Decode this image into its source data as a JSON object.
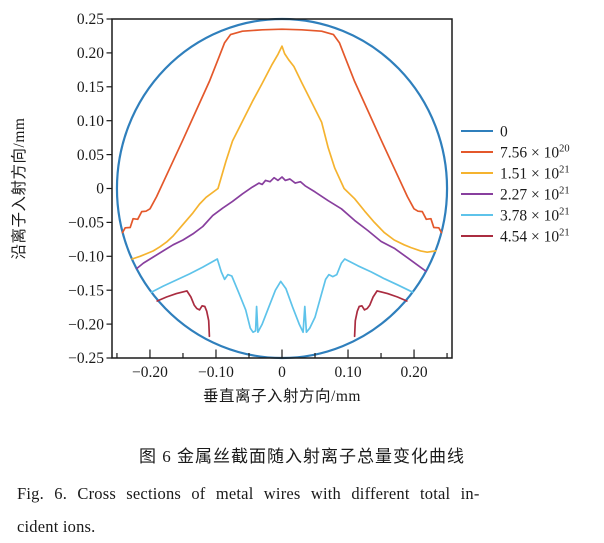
{
  "chart_data": {
    "type": "line",
    "title": "",
    "xlabel": "垂直离子入射方向/mm",
    "ylabel": "沿离子入射方向/mm",
    "xlim": [
      -0.2575,
      0.2575
    ],
    "ylim": [
      -0.25,
      0.25
    ],
    "x_major_ticks": [
      -0.2,
      -0.1,
      0,
      0.1,
      0.2
    ],
    "x_minor_ticks": [
      -0.25,
      -0.15,
      -0.05,
      0.05,
      0.15,
      0.25
    ],
    "y_major_ticks": [
      0.25,
      0.2,
      0.15,
      0.1,
      0.05,
      0,
      -0.05,
      -0.1,
      -0.15,
      -0.2,
      -0.25
    ],
    "grid": false,
    "legend_position": "center-right",
    "frame_color": "#1a1a1a",
    "series": [
      {
        "name": "0",
        "color": "#2f7fbc",
        "legend_base": "0",
        "legend_exp": "",
        "circle": {
          "cx": 0,
          "cy": 0,
          "r": 0.25
        }
      },
      {
        "name": "7.56e20",
        "color": "#e4582b",
        "legend_base": "7.56 × 10",
        "legend_exp": "20",
        "segments": [
          [
            [
              -0.2416,
              -0.065
            ],
            [
              -0.2375,
              -0.058
            ],
            [
              -0.23,
              -0.0575
            ],
            [
              -0.2255,
              -0.0445
            ],
            [
              -0.2185,
              -0.0455
            ],
            [
              -0.2125,
              -0.034
            ],
            [
              -0.206,
              -0.0335
            ],
            [
              -0.2,
              -0.03
            ],
            [
              -0.19,
              -0.012
            ],
            [
              -0.17,
              0.03
            ],
            [
              -0.15,
              0.072
            ],
            [
              -0.13,
              0.115
            ],
            [
              -0.11,
              0.158
            ],
            [
              -0.095,
              0.195
            ],
            [
              -0.087,
              0.215
            ],
            [
              -0.078,
              0.227
            ],
            [
              -0.06,
              0.232
            ],
            [
              -0.03,
              0.234
            ],
            [
              0,
              0.235
            ],
            [
              0.03,
              0.234
            ],
            [
              0.06,
              0.232
            ],
            [
              0.078,
              0.227
            ],
            [
              0.087,
              0.215
            ],
            [
              0.095,
              0.195
            ],
            [
              0.11,
              0.158
            ],
            [
              0.13,
              0.115
            ],
            [
              0.15,
              0.072
            ],
            [
              0.17,
              0.03
            ],
            [
              0.19,
              -0.012
            ],
            [
              0.2,
              -0.03
            ],
            [
              0.206,
              -0.0335
            ],
            [
              0.2125,
              -0.034
            ],
            [
              0.2185,
              -0.0455
            ],
            [
              0.2255,
              -0.0445
            ],
            [
              0.23,
              -0.0575
            ],
            [
              0.2375,
              -0.058
            ],
            [
              0.2416,
              -0.065
            ]
          ]
        ]
      },
      {
        "name": "1.51e21",
        "color": "#f5b32f",
        "legend_base": "1.51 × 10",
        "legend_exp": "21",
        "segments": [
          [
            [
              -0.227,
              -0.104
            ],
            [
              -0.215,
              -0.1
            ],
            [
              -0.205,
              -0.096
            ],
            [
              -0.195,
              -0.092
            ],
            [
              -0.185,
              -0.086
            ],
            [
              -0.175,
              -0.079
            ],
            [
              -0.165,
              -0.07
            ],
            [
              -0.15,
              -0.053
            ],
            [
              -0.135,
              -0.036
            ],
            [
              -0.125,
              -0.023
            ],
            [
              -0.115,
              -0.013
            ],
            [
              -0.097,
              0
            ],
            [
              -0.085,
              0.04
            ],
            [
              -0.075,
              0.07
            ],
            [
              -0.06,
              0.099
            ],
            [
              -0.045,
              0.128
            ],
            [
              -0.03,
              0.155
            ],
            [
              -0.015,
              0.183
            ],
            [
              -0.006,
              0.198
            ],
            [
              0,
              0.21
            ],
            [
              0.004,
              0.199
            ],
            [
              0.01,
              0.19
            ],
            [
              0.018,
              0.18
            ],
            [
              0.03,
              0.156
            ],
            [
              0.045,
              0.127
            ],
            [
              0.06,
              0.098
            ],
            [
              0.07,
              0.06
            ],
            [
              0.08,
              0.03
            ],
            [
              0.094,
              0
            ],
            [
              0.11,
              -0.015
            ],
            [
              0.125,
              -0.033
            ],
            [
              0.14,
              -0.05
            ],
            [
              0.155,
              -0.065
            ],
            [
              0.17,
              -0.076
            ],
            [
              0.185,
              -0.083
            ],
            [
              0.195,
              -0.087
            ],
            [
              0.21,
              -0.092
            ],
            [
              0.22,
              -0.094
            ],
            [
              0.233,
              -0.092
            ]
          ]
        ]
      },
      {
        "name": "2.27e21",
        "color": "#883f9e",
        "legend_base": "2.27 × 10",
        "legend_exp": "21",
        "segments": [
          [
            [
              -0.22,
              -0.118
            ],
            [
              -0.21,
              -0.11
            ],
            [
              -0.195,
              -0.101
            ],
            [
              -0.18,
              -0.092
            ],
            [
              -0.165,
              -0.083
            ],
            [
              -0.15,
              -0.076
            ],
            [
              -0.135,
              -0.067
            ],
            [
              -0.12,
              -0.056
            ],
            [
              -0.105,
              -0.04
            ],
            [
              -0.09,
              -0.029
            ],
            [
              -0.075,
              -0.019
            ],
            [
              -0.06,
              -0.008
            ],
            [
              -0.045,
              0.002
            ],
            [
              -0.035,
              0.008
            ],
            [
              -0.03,
              0.006
            ],
            [
              -0.025,
              0.012
            ],
            [
              -0.018,
              0.01
            ],
            [
              -0.012,
              0.016
            ],
            [
              -0.006,
              0.012
            ],
            [
              0,
              0.017
            ],
            [
              0.005,
              0.012
            ],
            [
              0.012,
              0.014
            ],
            [
              0.02,
              0.008
            ],
            [
              0.028,
              0.01
            ],
            [
              0.035,
              0.004
            ],
            [
              0.05,
              -0.005
            ],
            [
              0.07,
              -0.018
            ],
            [
              0.09,
              -0.03
            ],
            [
              0.11,
              -0.047
            ],
            [
              0.13,
              -0.062
            ],
            [
              0.15,
              -0.078
            ],
            [
              0.17,
              -0.088
            ],
            [
              0.19,
              -0.102
            ],
            [
              0.218,
              -0.122
            ]
          ]
        ]
      },
      {
        "name": "3.78e21",
        "color": "#5ec3ea",
        "legend_base": "3.78 × 10",
        "legend_exp": "21",
        "segments": [
          [
            [
              -0.198,
              -0.153
            ],
            [
              -0.18,
              -0.144
            ],
            [
              -0.16,
              -0.135
            ],
            [
              -0.14,
              -0.126
            ],
            [
              -0.12,
              -0.116
            ],
            [
              -0.098,
              -0.104
            ],
            [
              -0.092,
              -0.123
            ],
            [
              -0.087,
              -0.134
            ],
            [
              -0.082,
              -0.127
            ],
            [
              -0.076,
              -0.129
            ],
            [
              -0.065,
              -0.155
            ],
            [
              -0.055,
              -0.179
            ],
            [
              -0.048,
              -0.206
            ],
            [
              -0.044,
              -0.212
            ],
            [
              -0.04,
              -0.21
            ],
            [
              -0.0385,
              -0.174
            ],
            [
              -0.0365,
              -0.212
            ],
            [
              -0.03,
              -0.2
            ],
            [
              -0.02,
              -0.175
            ],
            [
              -0.01,
              -0.15
            ],
            [
              -0.002,
              -0.137
            ],
            [
              0.006,
              -0.148
            ],
            [
              0.016,
              -0.175
            ],
            [
              0.026,
              -0.2
            ],
            [
              0.032,
              -0.212
            ],
            [
              0.0345,
              -0.174
            ],
            [
              0.037,
              -0.212
            ],
            [
              0.042,
              -0.206
            ],
            [
              0.05,
              -0.19
            ],
            [
              0.06,
              -0.155
            ],
            [
              0.066,
              -0.134
            ],
            [
              0.071,
              -0.127
            ],
            [
              0.077,
              -0.13
            ],
            [
              0.083,
              -0.127
            ],
            [
              0.09,
              -0.11
            ],
            [
              0.095,
              -0.104
            ],
            [
              0.115,
              -0.114
            ],
            [
              0.135,
              -0.123
            ],
            [
              0.155,
              -0.133
            ],
            [
              0.175,
              -0.142
            ],
            [
              0.198,
              -0.153
            ]
          ]
        ]
      },
      {
        "name": "4.54e21",
        "color": "#aa2c40",
        "legend_base": "4.54 × 10",
        "legend_exp": "21",
        "segments": [
          [
            [
              -0.189,
              -0.166
            ],
            [
              -0.175,
              -0.16
            ],
            [
              -0.16,
              -0.155
            ],
            [
              -0.144,
              -0.151
            ],
            [
              -0.138,
              -0.16
            ],
            [
              -0.133,
              -0.172
            ],
            [
              -0.129,
              -0.177
            ],
            [
              -0.125,
              -0.179
            ],
            [
              -0.121,
              -0.173
            ],
            [
              -0.117,
              -0.174
            ],
            [
              -0.114,
              -0.181
            ],
            [
              -0.111,
              -0.195
            ],
            [
              -0.11,
              -0.218
            ]
          ],
          [
            [
              0.11,
              -0.218
            ],
            [
              0.111,
              -0.195
            ],
            [
              0.114,
              -0.181
            ],
            [
              0.117,
              -0.174
            ],
            [
              0.121,
              -0.173
            ],
            [
              0.125,
              -0.179
            ],
            [
              0.129,
              -0.177
            ],
            [
              0.133,
              -0.172
            ],
            [
              0.138,
              -0.16
            ],
            [
              0.144,
              -0.151
            ],
            [
              0.16,
              -0.155
            ],
            [
              0.175,
              -0.16
            ],
            [
              0.189,
              -0.166
            ]
          ]
        ]
      }
    ]
  },
  "captions": {
    "zh": "图 6  金属丝截面随入射离子总量变化曲线",
    "en_line1": "Fig. 6. Cross sections of metal wires with different total in-",
    "en_line2": "cident ions."
  }
}
